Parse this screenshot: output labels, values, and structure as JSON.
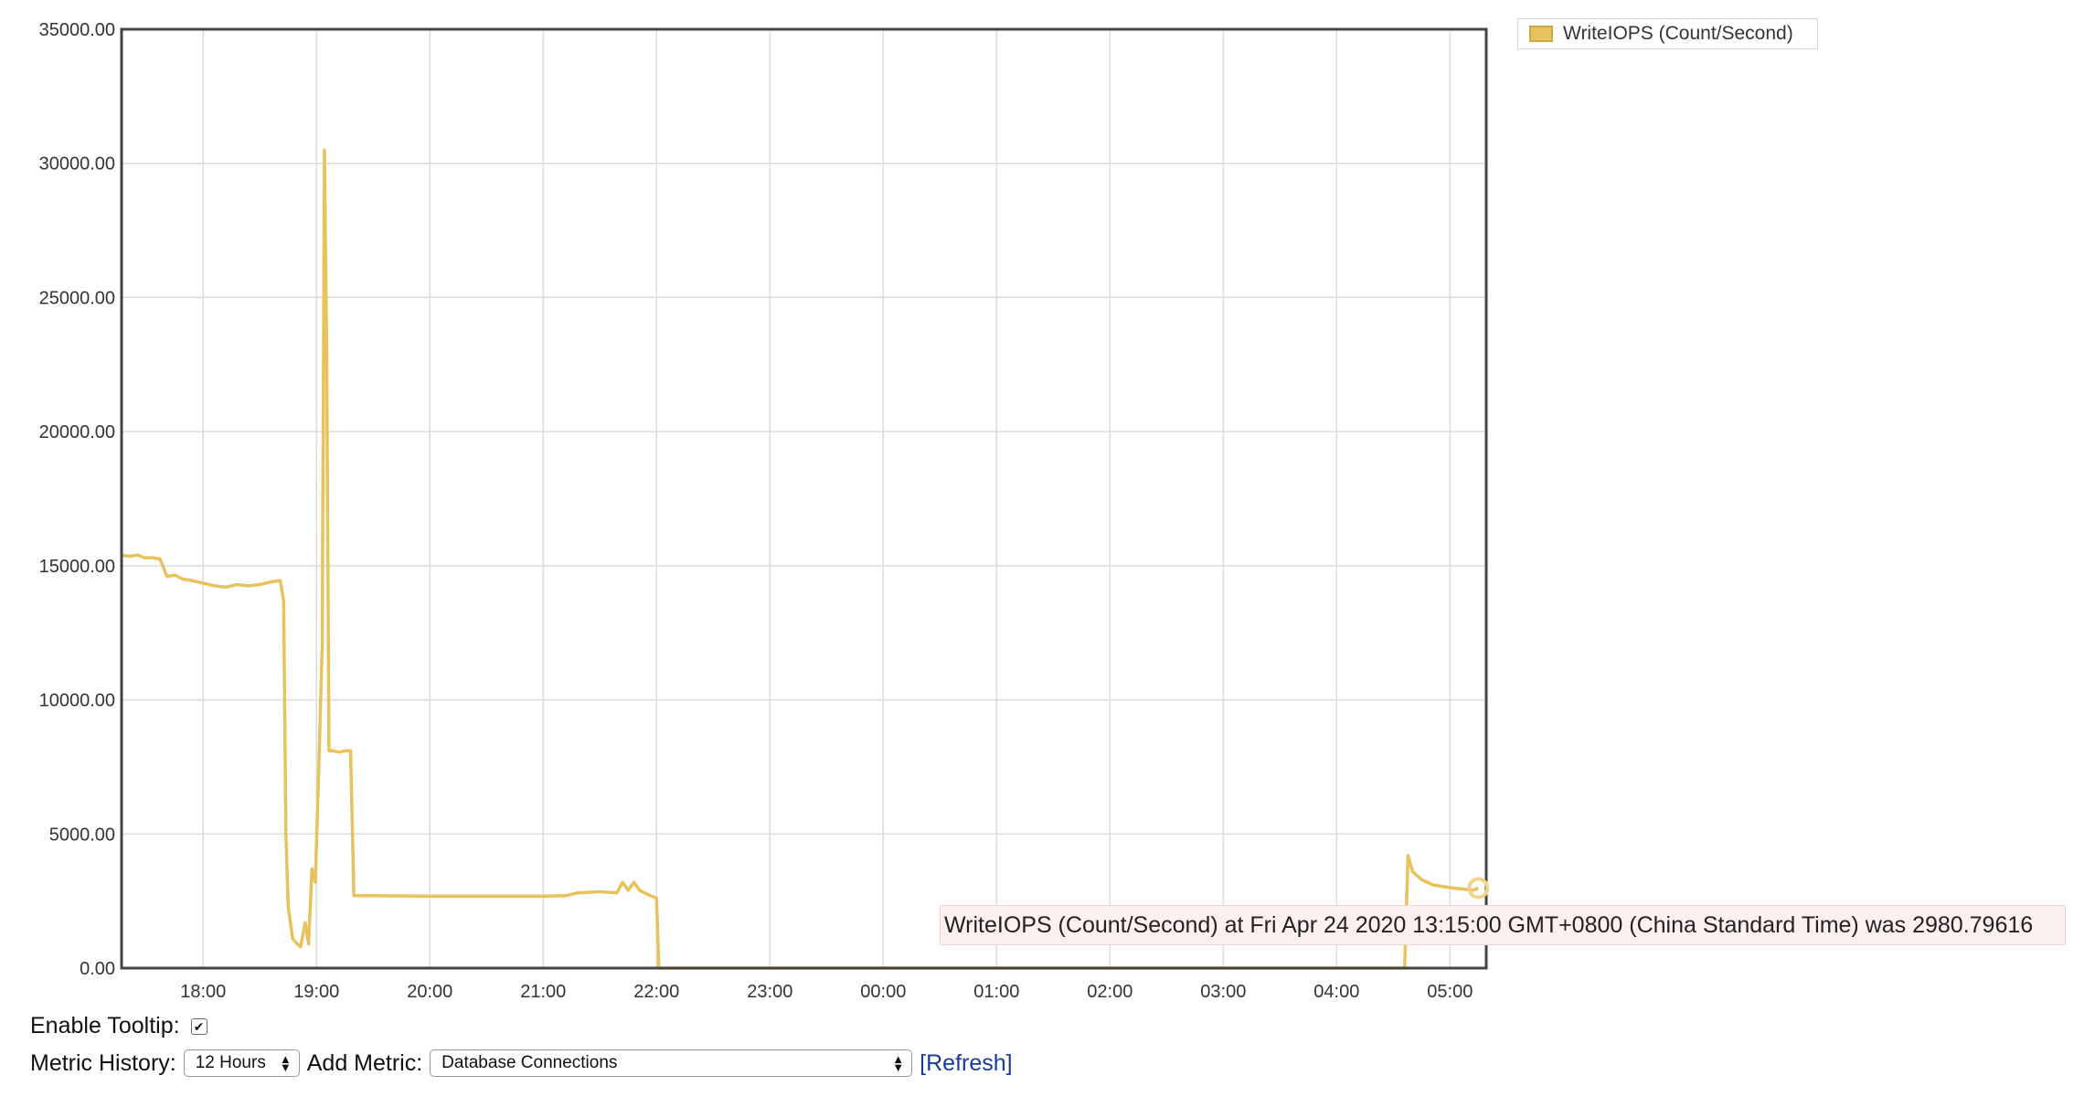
{
  "chart_data": {
    "type": "line",
    "ylim": [
      0,
      35000
    ],
    "y_ticks": [
      "0.00",
      "5000.00",
      "10000.00",
      "15000.00",
      "20000.00",
      "25000.00",
      "30000.00",
      "35000.00"
    ],
    "x_ticks": [
      "18:00",
      "19:00",
      "20:00",
      "21:00",
      "22:00",
      "23:00",
      "00:00",
      "01:00",
      "02:00",
      "03:00",
      "04:00",
      "05:00"
    ],
    "x_range_hours": [
      17.28,
      29.32
    ],
    "grid": true,
    "legend_position": "top-right",
    "series": [
      {
        "name": "WriteIOPS (Count/Second)",
        "color": "#e8c25c",
        "points": [
          [
            17.28,
            15400
          ],
          [
            17.35,
            15350
          ],
          [
            17.42,
            15400
          ],
          [
            17.48,
            15300
          ],
          [
            17.55,
            15300
          ],
          [
            17.62,
            15250
          ],
          [
            17.68,
            14600
          ],
          [
            17.75,
            14650
          ],
          [
            17.82,
            14500
          ],
          [
            17.9,
            14450
          ],
          [
            18.0,
            14350
          ],
          [
            18.1,
            14250
          ],
          [
            18.2,
            14200
          ],
          [
            18.3,
            14300
          ],
          [
            18.4,
            14250
          ],
          [
            18.5,
            14300
          ],
          [
            18.6,
            14400
          ],
          [
            18.68,
            14450
          ],
          [
            18.71,
            13700
          ],
          [
            18.73,
            5000
          ],
          [
            18.75,
            2300
          ],
          [
            18.79,
            1100
          ],
          [
            18.83,
            900
          ],
          [
            18.86,
            800
          ],
          [
            18.9,
            1700
          ],
          [
            18.93,
            900
          ],
          [
            18.96,
            3700
          ],
          [
            18.99,
            3200
          ],
          [
            19.02,
            7500
          ],
          [
            19.05,
            12000
          ],
          [
            19.07,
            30500
          ],
          [
            19.09,
            23000
          ],
          [
            19.11,
            8100
          ],
          [
            19.15,
            8100
          ],
          [
            19.2,
            8050
          ],
          [
            19.25,
            8100
          ],
          [
            19.3,
            8100
          ],
          [
            19.33,
            2700
          ],
          [
            19.5,
            2700
          ],
          [
            20.0,
            2680
          ],
          [
            20.5,
            2680
          ],
          [
            21.0,
            2680
          ],
          [
            21.2,
            2700
          ],
          [
            21.3,
            2800
          ],
          [
            21.5,
            2850
          ],
          [
            21.65,
            2800
          ],
          [
            21.7,
            3200
          ],
          [
            21.75,
            2900
          ],
          [
            21.8,
            3200
          ],
          [
            21.85,
            2900
          ],
          [
            21.92,
            2750
          ],
          [
            22.0,
            2600
          ],
          [
            22.02,
            0
          ],
          [
            23.0,
            0
          ],
          [
            24.0,
            0
          ],
          [
            25.0,
            0
          ],
          [
            26.0,
            0
          ],
          [
            27.0,
            0
          ],
          [
            28.0,
            0
          ],
          [
            28.6,
            0
          ],
          [
            28.63,
            4200
          ],
          [
            28.67,
            3600
          ],
          [
            28.75,
            3300
          ],
          [
            28.85,
            3100
          ],
          [
            29.0,
            3000
          ],
          [
            29.1,
            2950
          ],
          [
            29.2,
            2900
          ],
          [
            29.25,
            2980
          ]
        ]
      }
    ],
    "highlight_point": [
      29.25,
      2980.79616
    ],
    "tooltip": "WriteIOPS (Count/Second) at Fri Apr 24 2020 13:15:00 GMT+0800 (China Standard Time) was 2980.79616"
  },
  "legend": {
    "label": "WriteIOPS (Count/Second)",
    "color": "#e8c25c"
  },
  "controls": {
    "tooltip_label": "Enable Tooltip:",
    "tooltip_enabled": true,
    "history_label": "Metric History:",
    "history_value": "12 Hours",
    "add_metric_label": "Add Metric:",
    "add_metric_value": "Database Connections",
    "refresh_label": "[Refresh]"
  }
}
